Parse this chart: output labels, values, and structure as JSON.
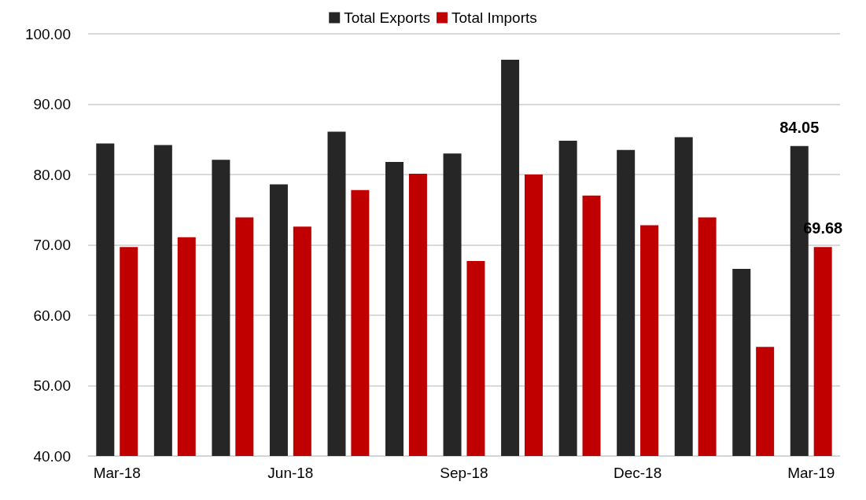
{
  "chart_data": {
    "type": "bar",
    "categories": [
      "Mar-18",
      null,
      null,
      "Jun-18",
      null,
      null,
      "Sep-18",
      null,
      null,
      "Dec-18",
      null,
      null,
      "Mar-19"
    ],
    "series": [
      {
        "name": "Total Exports",
        "color": "#262626",
        "values": [
          84.4,
          84.2,
          82.1,
          78.6,
          86.1,
          81.8,
          83.0,
          96.3,
          84.8,
          83.5,
          85.3,
          66.6,
          84.05
        ],
        "value_labels": [
          null,
          null,
          null,
          null,
          null,
          null,
          null,
          null,
          null,
          null,
          null,
          null,
          "84.05"
        ]
      },
      {
        "name": "Total Imports",
        "color": "#c00000",
        "values": [
          69.7,
          71.1,
          73.9,
          72.6,
          77.8,
          80.1,
          67.7,
          80.0,
          77.0,
          72.8,
          73.9,
          55.5,
          69.68
        ],
        "value_labels": [
          null,
          null,
          null,
          null,
          null,
          null,
          null,
          null,
          null,
          null,
          null,
          null,
          "69.68"
        ]
      }
    ],
    "ylim": [
      40,
      100
    ],
    "yticks": [
      {
        "value": 40,
        "label": "40.00"
      },
      {
        "value": 50,
        "label": "50.00"
      },
      {
        "value": 60,
        "label": "60.00"
      },
      {
        "value": 70,
        "label": "70.00"
      },
      {
        "value": 80,
        "label": "80.00"
      },
      {
        "value": 90,
        "label": "90.00"
      },
      {
        "value": 100,
        "label": "100.00"
      }
    ],
    "grid": "y",
    "legend": "top"
  }
}
